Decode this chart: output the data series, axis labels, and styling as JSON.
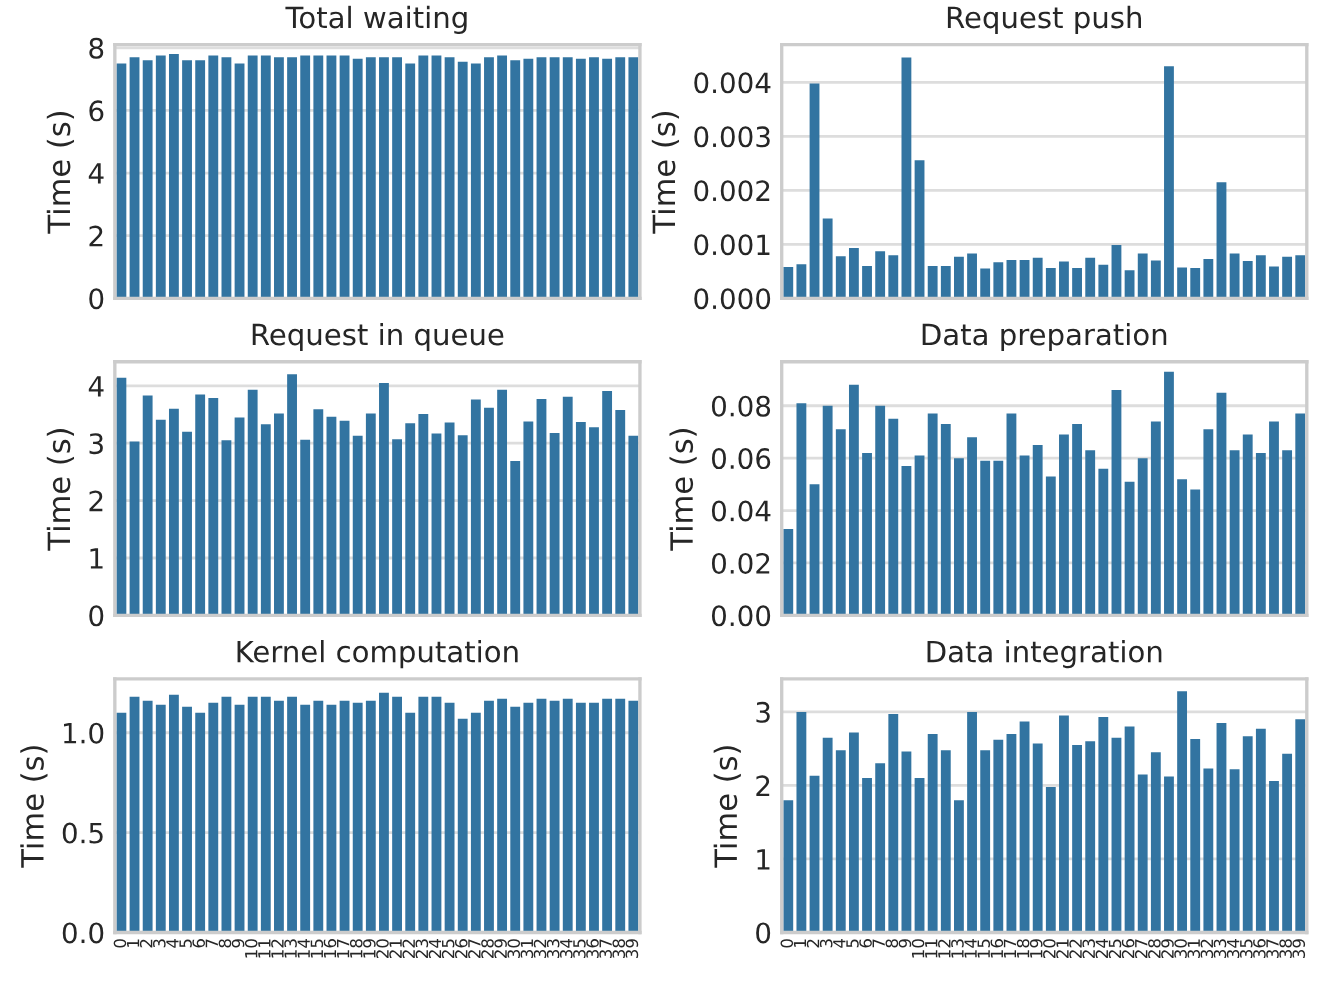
{
  "chart_data": [
    {
      "type": "bar",
      "title": "Total waiting",
      "ylabel": "Time (s)",
      "categories": [
        "0",
        "1",
        "2",
        "3",
        "4",
        "5",
        "6",
        "7",
        "8",
        "9",
        "10",
        "11",
        "12",
        "13",
        "14",
        "15",
        "16",
        "17",
        "18",
        "19",
        "20",
        "21",
        "22",
        "23",
        "24",
        "25",
        "26",
        "27",
        "28",
        "29",
        "30",
        "31",
        "32",
        "33",
        "34",
        "35",
        "36",
        "37",
        "38",
        "39"
      ],
      "color": "#3274a1",
      "ylim": [
        0,
        8.1
      ],
      "yticks": [
        0,
        2,
        4,
        6,
        8
      ],
      "grid": "y",
      "tick_labels": "y",
      "values": [
        7.5,
        7.7,
        7.6,
        7.75,
        7.8,
        7.6,
        7.6,
        7.75,
        7.7,
        7.5,
        7.75,
        7.75,
        7.7,
        7.7,
        7.75,
        7.75,
        7.75,
        7.75,
        7.65,
        7.7,
        7.7,
        7.7,
        7.5,
        7.75,
        7.75,
        7.7,
        7.55,
        7.5,
        7.7,
        7.75,
        7.6,
        7.65,
        7.7,
        7.7,
        7.7,
        7.65,
        7.7,
        7.65,
        7.7,
        7.7
      ]
    },
    {
      "type": "bar",
      "title": "Request push",
      "ylabel": "Time (s)",
      "categories": [
        "0",
        "1",
        "2",
        "3",
        "4",
        "5",
        "6",
        "7",
        "8",
        "9",
        "10",
        "11",
        "12",
        "13",
        "14",
        "15",
        "16",
        "17",
        "18",
        "19",
        "20",
        "21",
        "22",
        "23",
        "24",
        "25",
        "26",
        "27",
        "28",
        "29",
        "30",
        "31",
        "32",
        "33",
        "34",
        "35",
        "36",
        "37",
        "38",
        "39"
      ],
      "color": "#3274a1",
      "ylim": [
        0,
        0.0047
      ],
      "yticks": [
        {
          "value": 0,
          "label": "0.000"
        },
        {
          "value": 0.001,
          "label": "0.001"
        },
        {
          "value": 0.002,
          "label": "0.002"
        },
        {
          "value": 0.003,
          "label": "0.003"
        },
        {
          "value": 0.004,
          "label": "0.004"
        }
      ],
      "grid": "y",
      "tick_labels": "y",
      "values": [
        0.00058,
        0.00063,
        0.00398,
        0.00148,
        0.00078,
        0.00093,
        0.0006,
        0.00087,
        0.0008,
        0.00446,
        0.00256,
        0.0006,
        0.0006,
        0.00077,
        0.00083,
        0.00055,
        0.00067,
        0.00071,
        0.00071,
        0.00075,
        0.00056,
        0.00068,
        0.00056,
        0.00075,
        0.00062,
        0.00099,
        0.00052,
        0.00083,
        0.0007,
        0.0043,
        0.00057,
        0.00056,
        0.00073,
        0.00215,
        0.00083,
        0.00069,
        0.0008,
        0.00059,
        0.00077,
        0.0008
      ]
    },
    {
      "type": "bar",
      "title": "Request in queue",
      "ylabel": "Time (s)",
      "categories": [
        "0",
        "1",
        "2",
        "3",
        "4",
        "5",
        "6",
        "7",
        "8",
        "9",
        "10",
        "11",
        "12",
        "13",
        "14",
        "15",
        "16",
        "17",
        "18",
        "19",
        "20",
        "21",
        "22",
        "23",
        "24",
        "25",
        "26",
        "27",
        "28",
        "29",
        "30",
        "31",
        "32",
        "33",
        "34",
        "35",
        "36",
        "37",
        "38",
        "39"
      ],
      "color": "#3274a1",
      "ylim": [
        0,
        4.42
      ],
      "yticks": [
        0,
        1,
        2,
        3,
        4
      ],
      "grid": "y",
      "tick_labels": "y",
      "values": [
        4.14,
        3.03,
        3.83,
        3.41,
        3.6,
        3.2,
        3.85,
        3.79,
        3.05,
        3.45,
        3.93,
        3.33,
        3.52,
        4.2,
        3.06,
        3.59,
        3.46,
        3.39,
        3.13,
        3.52,
        4.05,
        3.07,
        3.35,
        3.51,
        3.17,
        3.36,
        3.14,
        3.76,
        3.62,
        3.93,
        2.69,
        3.38,
        3.77,
        3.18,
        3.81,
        3.37,
        3.28,
        3.91,
        3.58,
        3.13
      ]
    },
    {
      "type": "bar",
      "title": "Data preparation",
      "ylabel": "Time (s)",
      "categories": [
        "0",
        "1",
        "2",
        "3",
        "4",
        "5",
        "6",
        "7",
        "8",
        "9",
        "10",
        "11",
        "12",
        "13",
        "14",
        "15",
        "16",
        "17",
        "18",
        "19",
        "20",
        "21",
        "22",
        "23",
        "24",
        "25",
        "26",
        "27",
        "28",
        "29",
        "30",
        "31",
        "32",
        "33",
        "34",
        "35",
        "36",
        "37",
        "38",
        "39"
      ],
      "color": "#3274a1",
      "ylim": [
        0,
        0.0968
      ],
      "yticks": [
        {
          "value": 0,
          "label": "0.00"
        },
        {
          "value": 0.02,
          "label": "0.02"
        },
        {
          "value": 0.04,
          "label": "0.04"
        },
        {
          "value": 0.06,
          "label": "0.06"
        },
        {
          "value": 0.08,
          "label": "0.08"
        }
      ],
      "grid": "y",
      "tick_labels": "y",
      "values": [
        0.033,
        0.081,
        0.05,
        0.08,
        0.071,
        0.088,
        0.062,
        0.08,
        0.075,
        0.057,
        0.061,
        0.077,
        0.073,
        0.06,
        0.068,
        0.059,
        0.059,
        0.077,
        0.061,
        0.065,
        0.053,
        0.069,
        0.073,
        0.063,
        0.056,
        0.086,
        0.051,
        0.06,
        0.074,
        0.093,
        0.052,
        0.048,
        0.071,
        0.085,
        0.063,
        0.069,
        0.062,
        0.074,
        0.063,
        0.077
      ]
    },
    {
      "type": "bar",
      "title": "Kernel computation",
      "ylabel": "Time (s)",
      "categories": [
        "0",
        "1",
        "2",
        "3",
        "4",
        "5",
        "6",
        "7",
        "8",
        "9",
        "10",
        "11",
        "12",
        "13",
        "14",
        "15",
        "16",
        "17",
        "18",
        "19",
        "20",
        "21",
        "22",
        "23",
        "24",
        "25",
        "26",
        "27",
        "28",
        "29",
        "30",
        "31",
        "32",
        "33",
        "34",
        "35",
        "36",
        "37",
        "38",
        "39"
      ],
      "color": "#3274a1",
      "ylim": [
        0,
        1.27
      ],
      "yticks": [
        {
          "value": 0,
          "label": "0.0"
        },
        {
          "value": 0.5,
          "label": "0.5"
        },
        {
          "value": 1,
          "label": "1.0"
        }
      ],
      "grid": "y",
      "values": [
        1.1,
        1.18,
        1.16,
        1.14,
        1.19,
        1.13,
        1.1,
        1.15,
        1.18,
        1.14,
        1.18,
        1.18,
        1.16,
        1.18,
        1.14,
        1.16,
        1.14,
        1.16,
        1.15,
        1.16,
        1.2,
        1.18,
        1.1,
        1.18,
        1.18,
        1.15,
        1.07,
        1.1,
        1.16,
        1.17,
        1.13,
        1.15,
        1.17,
        1.16,
        1.17,
        1.15,
        1.15,
        1.17,
        1.17,
        1.16
      ]
    },
    {
      "type": "bar",
      "title": "Data integration",
      "ylabel": "Time (s)",
      "categories": [
        "0",
        "1",
        "2",
        "3",
        "4",
        "5",
        "6",
        "7",
        "8",
        "9",
        "10",
        "11",
        "12",
        "13",
        "14",
        "15",
        "16",
        "17",
        "18",
        "19",
        "20",
        "21",
        "22",
        "23",
        "24",
        "25",
        "26",
        "27",
        "28",
        "29",
        "30",
        "31",
        "32",
        "33",
        "34",
        "35",
        "36",
        "37",
        "38",
        "39"
      ],
      "color": "#3274a1",
      "ylim": [
        0,
        3.45
      ],
      "yticks": [
        0,
        1,
        2,
        3
      ],
      "grid": "y",
      "values": [
        1.8,
        3.0,
        2.13,
        2.65,
        2.48,
        2.72,
        2.1,
        2.3,
        2.97,
        2.46,
        2.1,
        2.7,
        2.48,
        1.8,
        3.0,
        2.48,
        2.62,
        2.7,
        2.87,
        2.57,
        1.98,
        2.95,
        2.55,
        2.6,
        2.93,
        2.65,
        2.8,
        2.15,
        2.45,
        2.12,
        3.28,
        2.63,
        2.23,
        2.85,
        2.22,
        2.67,
        2.77,
        2.06,
        2.43,
        2.9
      ]
    }
  ]
}
